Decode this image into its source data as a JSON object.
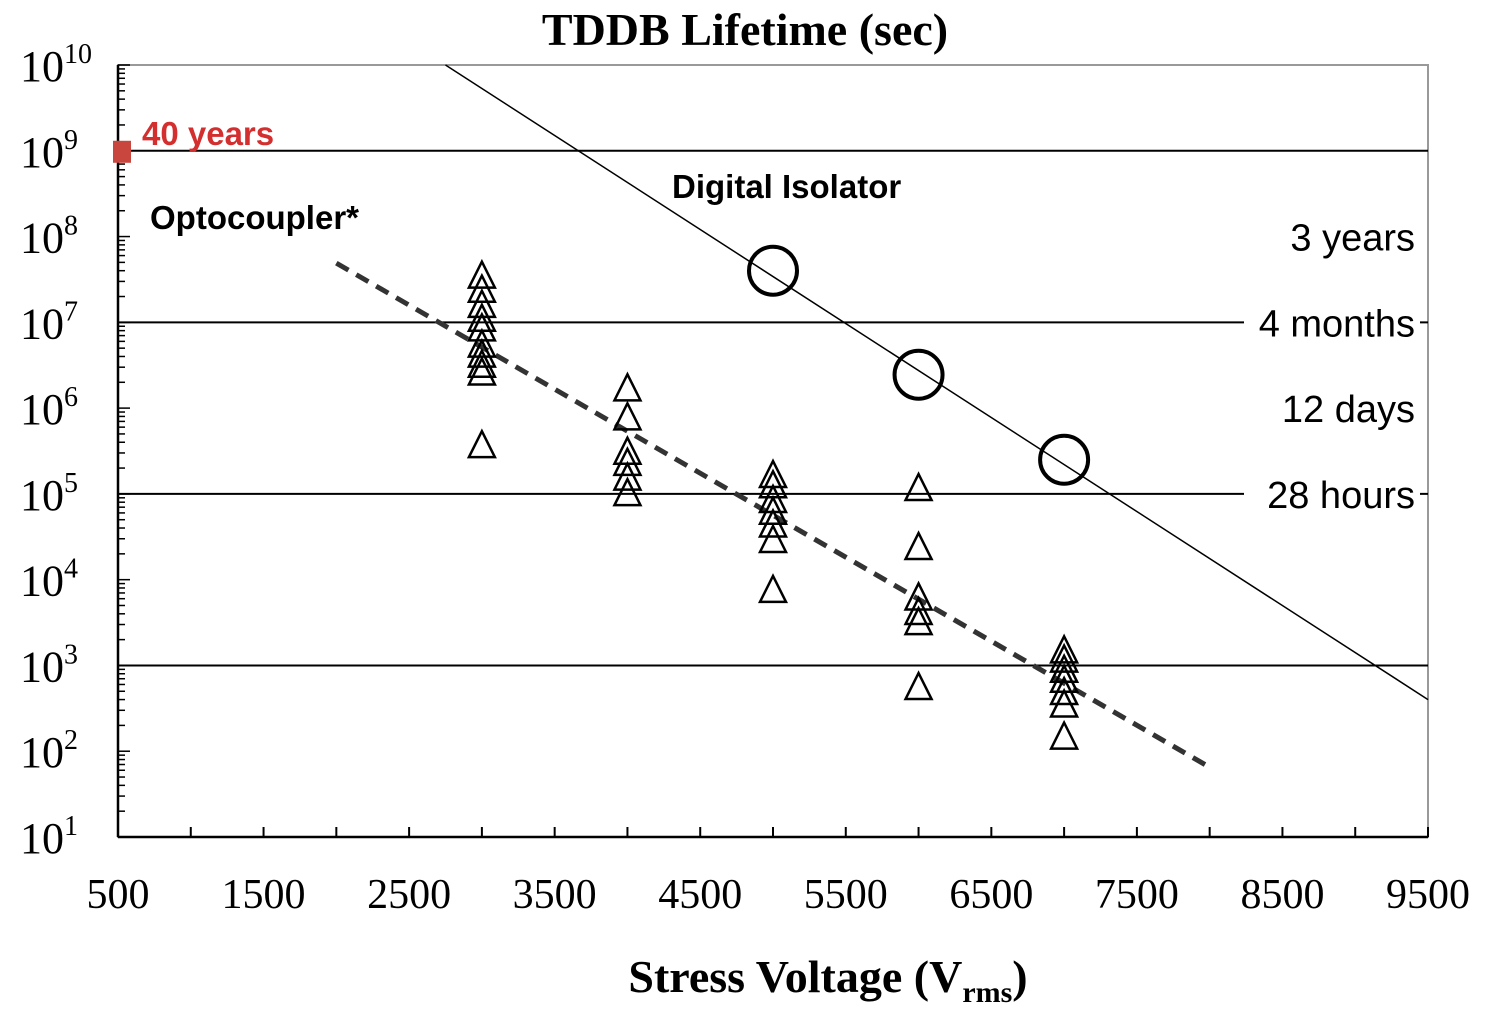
{
  "chart_data": {
    "type": "scatter",
    "title": "TDDB Lifetime  (sec)",
    "xlabel": {
      "main": "Stress Voltage (V",
      "sub": "rms",
      "close": ")"
    },
    "ylabel": "",
    "xlim": [
      500,
      9500
    ],
    "ylim": [
      10,
      10000000000
    ],
    "y_scale": "log",
    "x_ticks": [
      500,
      1500,
      2500,
      3500,
      4500,
      5500,
      6500,
      7500,
      8500,
      9500
    ],
    "y_tick_exponents": [
      "1",
      "2",
      "3",
      "4",
      "5",
      "6",
      "7",
      "8",
      "9",
      "10"
    ],
    "y_tick_base": "10",
    "reference_lines": [
      {
        "y": 1000000000,
        "label": "40 years",
        "color": "#d32f2f",
        "side": "left"
      },
      {
        "y": 100000000,
        "label": "3 years",
        "side": "right",
        "line": false
      },
      {
        "y": 10000000,
        "label": "4 months",
        "side": "right"
      },
      {
        "y": 1000000,
        "label": "12 days",
        "side": "right",
        "line": false
      },
      {
        "y": 100000,
        "label": "28 hours",
        "side": "right"
      },
      {
        "y": 1000,
        "label": "",
        "side": "right"
      }
    ],
    "series": [
      {
        "name": "Optocoupler*",
        "marker": "triangle",
        "points": [
          [
            3000,
            35000000
          ],
          [
            3000,
            24000000
          ],
          [
            3000,
            16000000
          ],
          [
            3000,
            11000000
          ],
          [
            3000,
            8500000
          ],
          [
            3000,
            5500000
          ],
          [
            3000,
            4200000
          ],
          [
            3000,
            3200000
          ],
          [
            3000,
            2600000
          ],
          [
            3000,
            370000
          ],
          [
            4000,
            1700000
          ],
          [
            4000,
            780000
          ],
          [
            4000,
            310000
          ],
          [
            4000,
            230000
          ],
          [
            4000,
            155000
          ],
          [
            4000,
            102000
          ],
          [
            5000,
            166000
          ],
          [
            5000,
            126000
          ],
          [
            5000,
            85000
          ],
          [
            5000,
            62000
          ],
          [
            5000,
            44000
          ],
          [
            5000,
            29000
          ],
          [
            5000,
            7600
          ],
          [
            6000,
            117000
          ],
          [
            6000,
            24000
          ],
          [
            6000,
            6200
          ],
          [
            6000,
            4200
          ],
          [
            6000,
            3200
          ],
          [
            6000,
            560
          ],
          [
            7000,
            1500
          ],
          [
            7000,
            1170
          ],
          [
            7000,
            890
          ],
          [
            7000,
            680
          ],
          [
            7000,
            490
          ],
          [
            7000,
            350
          ],
          [
            7000,
            148
          ]
        ],
        "fit": {
          "style": "dashed",
          "from": [
            2000,
            49000000
          ],
          "to": [
            8000,
            65
          ]
        }
      },
      {
        "name": "Digital Isolator",
        "marker": "circle",
        "points": [
          [
            5000,
            40000000
          ],
          [
            6000,
            2450000
          ],
          [
            7000,
            250000
          ]
        ],
        "fit": {
          "style": "solid",
          "from": [
            2750,
            10000000000
          ],
          "to": [
            9500,
            400
          ]
        }
      }
    ],
    "annotations": [
      "Optocoupler*",
      "Digital Isolator"
    ],
    "grid": false,
    "colors": {
      "axis": "#000000",
      "frame": "#999999",
      "highlight": "#d32f2f",
      "marker_40y": "#c8463e"
    }
  }
}
